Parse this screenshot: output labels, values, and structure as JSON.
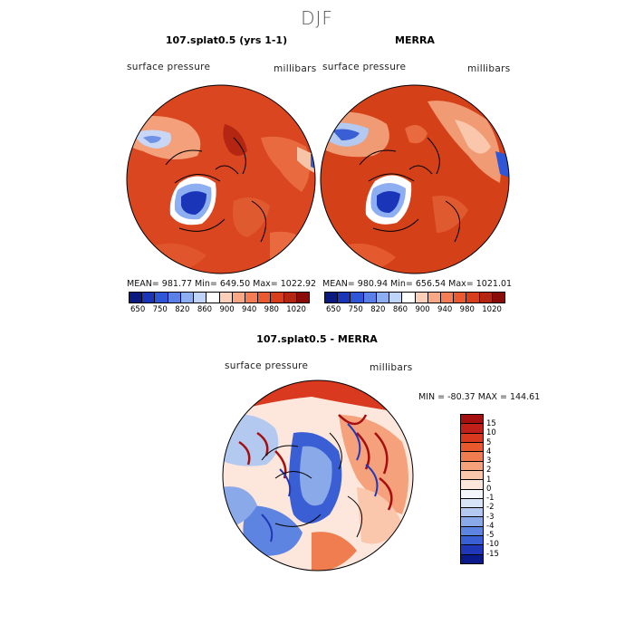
{
  "season": "DJF",
  "panels": [
    {
      "title": "107.splat0.5 (yrs 1-1)",
      "variable": "surface pressure",
      "units": "millibars",
      "stats": "MEAN= 981.77   Min= 649.50   Max= 1022.92"
    },
    {
      "title": "MERRA",
      "variable": "surface pressure",
      "units": "millibars",
      "stats": "MEAN= 980.94   Min= 656.54   Max= 1021.01"
    }
  ],
  "abs_colorbar": {
    "colors": [
      "#0b1a80",
      "#1a35b8",
      "#2f56d6",
      "#5a80e8",
      "#8eaef2",
      "#c0d4f7",
      "#ffffff",
      "#fcd0b8",
      "#f9a784",
      "#f47d55",
      "#ea5a30",
      "#d83e1c",
      "#b52612",
      "#8a0c08"
    ],
    "labels": [
      "650",
      "750",
      "820",
      "860",
      "900",
      "940",
      "980",
      "1020"
    ],
    "label_full": [
      "650",
      "750",
      "820",
      "860",
      "900",
      "940",
      "980",
      "1020"
    ]
  },
  "abs_ticks": [
    "650",
    "750",
    "820",
    "860",
    "900",
    "940",
    "980",
    "1020"
  ],
  "diff_panel": {
    "title": "107.splat0.5 - MERRA",
    "variable": "surface pressure",
    "units": "millibars",
    "stats": "MIN = -80.37  MAX = 144.61"
  },
  "diff_colorbar": {
    "colors": [
      "#a50f0f",
      "#c0201a",
      "#d9391f",
      "#e85a2e",
      "#f07d4f",
      "#f5a27c",
      "#fac7ad",
      "#fde7dc",
      "#f3f6fb",
      "#d7e3f6",
      "#b3c9f0",
      "#8aa9e8",
      "#5d84e0",
      "#3a5fd4",
      "#2038b8",
      "#0b1a8a"
    ],
    "labels": [
      "15",
      "10",
      "5",
      "4",
      "3",
      "2",
      "1",
      "0",
      "-1",
      "-2",
      "-3",
      "-4",
      "-5",
      "-10",
      "-15"
    ]
  },
  "legend_colors": {
    "land_outline": "#000000",
    "high_pressure": "#d8401c",
    "low_pressure": "#2f56d6"
  }
}
